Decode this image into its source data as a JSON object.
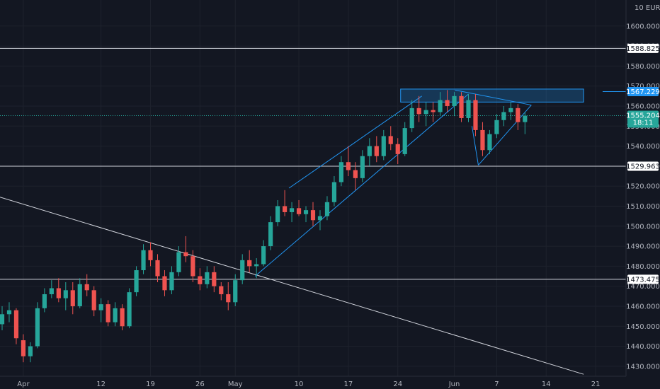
{
  "colors": {
    "background": "#131722",
    "grid": "#1e222d",
    "text": "#b2b5be",
    "up": "#26a69a",
    "down": "#ef5350",
    "drawing": "#2196f3",
    "hline": "#d1d4dc",
    "price_line": "#26a69a",
    "highlight_box": "#2196f3"
  },
  "chart_data": {
    "type": "candlestick",
    "currency": "EUR",
    "unit_mark": "10",
    "ylim": [
      1425,
      1613
    ],
    "y_ticks": [
      1430,
      1440,
      1450,
      1460,
      1470,
      1480,
      1490,
      1500,
      1510,
      1520,
      1530,
      1540,
      1550,
      1560,
      1570,
      1580,
      1590,
      1600
    ],
    "y_tick_labels": [
      "1430.000",
      "1440.000",
      "1450.000",
      "1460.000",
      "1470.000",
      "1480.000",
      "1490.000",
      "1500.000",
      "1510.000",
      "1520.000",
      "1530.000",
      "1540.000",
      "1550.000",
      "1560.000",
      "1570.000",
      "1580.000",
      "1590.000",
      "1600.000"
    ],
    "x_ticks": [
      {
        "label": "Apr",
        "t": 0
      },
      {
        "label": "12",
        "t": 11
      },
      {
        "label": "19",
        "t": 18
      },
      {
        "label": "26",
        "t": 25
      },
      {
        "label": "May",
        "t": 30
      },
      {
        "label": "10",
        "t": 39
      },
      {
        "label": "17",
        "t": 46
      },
      {
        "label": "24",
        "t": 53
      },
      {
        "label": "Jun",
        "t": 61
      },
      {
        "label": "7",
        "t": 67
      },
      {
        "label": "14",
        "t": 74
      },
      {
        "label": "21",
        "t": 81
      }
    ],
    "t_range": [
      -3.3,
      85.3
    ],
    "key_levels": [
      1588.825,
      1529.963,
      1473.475
    ],
    "level_labels": [
      "1588.825",
      "1529.963",
      "1473.475"
    ],
    "last_price": 1555.204,
    "last_price_label": "1555.204",
    "countdown": "18:11",
    "projection_level": 1567.229,
    "projection_label": "1567.229",
    "resistance_zone": {
      "t_start": 53.4,
      "t_end": 79.3,
      "low": 1562.0,
      "high": 1568.5
    },
    "trendlines": [
      {
        "name": "long-descending-line",
        "from": [
          -3.3,
          1514.5
        ],
        "to": [
          79.3,
          1426.0
        ]
      },
      {
        "name": "channel-lower",
        "from": [
          32.8,
          1475.0
        ],
        "to": [
          63.0,
          1566.0
        ]
      },
      {
        "name": "channel-upper",
        "from": [
          37.6,
          1519.0
        ],
        "to": [
          56.4,
          1565.0
        ]
      },
      {
        "name": "wedge-top",
        "from": [
          61.1,
          1568.0
        ],
        "to": [
          71.9,
          1560.5
        ]
      },
      {
        "name": "wedge-bottom",
        "from": [
          64.4,
          1530.5
        ],
        "to": [
          71.9,
          1560.5
        ]
      },
      {
        "name": "wedge-left",
        "from": [
          64.4,
          1530.5
        ],
        "to": [
          63.5,
          1550.0
        ]
      }
    ],
    "ohlc_columns": [
      "t",
      "open",
      "high",
      "low",
      "close"
    ],
    "candles": [
      [
        -3,
        1451,
        1460,
        1448,
        1456
      ],
      [
        -2,
        1456,
        1462,
        1452,
        1458
      ],
      [
        -1,
        1458,
        1459,
        1441,
        1444
      ],
      [
        0,
        1443,
        1446,
        1432,
        1435
      ],
      [
        1,
        1435,
        1442,
        1432,
        1440
      ],
      [
        2,
        1440,
        1462,
        1439,
        1459
      ],
      [
        3,
        1459,
        1469,
        1457,
        1466
      ],
      [
        4,
        1466,
        1473,
        1464,
        1469
      ],
      [
        5,
        1469,
        1474,
        1462,
        1464
      ],
      [
        6,
        1464,
        1472,
        1458,
        1468
      ],
      [
        7,
        1468,
        1472,
        1456,
        1460
      ],
      [
        8,
        1460,
        1474,
        1459,
        1471
      ],
      [
        9,
        1471,
        1476,
        1465,
        1468
      ],
      [
        10,
        1468,
        1470,
        1455,
        1458
      ],
      [
        11,
        1458,
        1464,
        1452,
        1461
      ],
      [
        12,
        1461,
        1463,
        1450,
        1452
      ],
      [
        13,
        1452,
        1462,
        1450,
        1459
      ],
      [
        14,
        1459,
        1461,
        1448,
        1450
      ],
      [
        15,
        1450,
        1469,
        1449,
        1467
      ],
      [
        16,
        1467,
        1480,
        1465,
        1478
      ],
      [
        17,
        1478,
        1491,
        1476,
        1488
      ],
      [
        18,
        1488,
        1492,
        1480,
        1483
      ],
      [
        19,
        1483,
        1486,
        1472,
        1475
      ],
      [
        20,
        1475,
        1478,
        1465,
        1468
      ],
      [
        21,
        1468,
        1480,
        1466,
        1477
      ],
      [
        22,
        1477,
        1490,
        1475,
        1487
      ],
      [
        23,
        1487,
        1495,
        1482,
        1485
      ],
      [
        24,
        1485,
        1488,
        1472,
        1475
      ],
      [
        25,
        1475,
        1479,
        1468,
        1471
      ],
      [
        26,
        1471,
        1480,
        1469,
        1477
      ],
      [
        27,
        1477,
        1480,
        1467,
        1470
      ],
      [
        28,
        1470,
        1472,
        1463,
        1466
      ],
      [
        29,
        1466,
        1472,
        1458,
        1462
      ],
      [
        30,
        1462,
        1476,
        1460,
        1473
      ],
      [
        31,
        1473,
        1486,
        1471,
        1483
      ],
      [
        32,
        1483,
        1488,
        1477,
        1480
      ],
      [
        33,
        1480,
        1484,
        1474,
        1481
      ],
      [
        34,
        1481,
        1493,
        1480,
        1490
      ],
      [
        35,
        1490,
        1505,
        1488,
        1502
      ],
      [
        36,
        1502,
        1513,
        1500,
        1510
      ],
      [
        37,
        1510,
        1518,
        1505,
        1507
      ],
      [
        38,
        1507,
        1512,
        1502,
        1509
      ],
      [
        39,
        1509,
        1513,
        1505,
        1506
      ],
      [
        40,
        1506,
        1510,
        1502,
        1508
      ],
      [
        41,
        1508,
        1512,
        1500,
        1503
      ],
      [
        42,
        1503,
        1508,
        1498,
        1505
      ],
      [
        43,
        1505,
        1515,
        1503,
        1512
      ],
      [
        44,
        1512,
        1525,
        1510,
        1522
      ],
      [
        45,
        1522,
        1535,
        1520,
        1532
      ],
      [
        46,
        1532,
        1540,
        1525,
        1528
      ],
      [
        47,
        1528,
        1532,
        1518,
        1524
      ],
      [
        48,
        1524,
        1538,
        1522,
        1535
      ],
      [
        49,
        1535,
        1544,
        1530,
        1540
      ],
      [
        50,
        1540,
        1545,
        1532,
        1535
      ],
      [
        51,
        1535,
        1548,
        1533,
        1545
      ],
      [
        52,
        1545,
        1550,
        1538,
        1541
      ],
      [
        53,
        1541,
        1544,
        1531,
        1536
      ],
      [
        54,
        1536,
        1552,
        1535,
        1549
      ],
      [
        55,
        1549,
        1563,
        1547,
        1559
      ],
      [
        56,
        1559,
        1565,
        1552,
        1556
      ],
      [
        57,
        1556,
        1562,
        1550,
        1558
      ],
      [
        58,
        1558,
        1562,
        1552,
        1557
      ],
      [
        59,
        1557,
        1567,
        1555,
        1563
      ],
      [
        60,
        1563,
        1568,
        1557,
        1560
      ],
      [
        61,
        1560,
        1567,
        1555,
        1565
      ],
      [
        62,
        1565,
        1567,
        1552,
        1554
      ],
      [
        63,
        1554,
        1566,
        1552,
        1563
      ],
      [
        64,
        1563,
        1566,
        1545,
        1548
      ],
      [
        65,
        1548,
        1552,
        1535,
        1538
      ],
      [
        66,
        1538,
        1548,
        1536,
        1546
      ],
      [
        67,
        1546,
        1556,
        1544,
        1553
      ],
      [
        68,
        1553,
        1560,
        1550,
        1557
      ],
      [
        69,
        1557,
        1562,
        1553,
        1559
      ],
      [
        70,
        1559,
        1561,
        1548,
        1552
      ],
      [
        71,
        1552,
        1557,
        1546,
        1555.204
      ]
    ]
  }
}
